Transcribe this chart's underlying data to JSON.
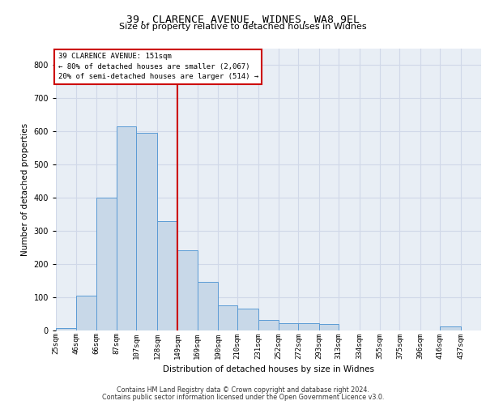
{
  "title1": "39, CLARENCE AVENUE, WIDNES, WA8 9EL",
  "title2": "Size of property relative to detached houses in Widnes",
  "xlabel": "Distribution of detached houses by size in Widnes",
  "ylabel": "Number of detached properties",
  "footer1": "Contains HM Land Registry data © Crown copyright and database right 2024.",
  "footer2": "Contains public sector information licensed under the Open Government Licence v3.0.",
  "annotation_line1": "39 CLARENCE AVENUE: 151sqm",
  "annotation_line2": "← 80% of detached houses are smaller (2,067)",
  "annotation_line3": "20% of semi-detached houses are larger (514) →",
  "bar_labels": [
    "25sqm",
    "46sqm",
    "66sqm",
    "87sqm",
    "107sqm",
    "128sqm",
    "149sqm",
    "169sqm",
    "190sqm",
    "210sqm",
    "231sqm",
    "252sqm",
    "272sqm",
    "293sqm",
    "313sqm",
    "334sqm",
    "355sqm",
    "375sqm",
    "396sqm",
    "416sqm",
    "437sqm"
  ],
  "bar_values": [
    5,
    105,
    400,
    615,
    595,
    330,
    240,
    145,
    75,
    65,
    30,
    20,
    20,
    18,
    0,
    0,
    0,
    0,
    0,
    10,
    0
  ],
  "bin_edges": [
    25,
    46,
    66,
    87,
    107,
    128,
    149,
    169,
    190,
    210,
    231,
    252,
    272,
    293,
    313,
    334,
    355,
    375,
    396,
    416,
    437,
    458
  ],
  "bar_color": "#c8d8e8",
  "bar_edge_color": "#5b9bd5",
  "property_line_x": 149,
  "annotation_box_color": "#ffffff",
  "annotation_box_edge_color": "#cc0000",
  "grid_color": "#d0d8e8",
  "bg_color": "#e8eef5",
  "ylim": [
    0,
    850
  ],
  "xlim": [
    25,
    458
  ],
  "title1_fontsize": 9.5,
  "title2_fontsize": 8.0,
  "ylabel_fontsize": 7.5,
  "xlabel_fontsize": 7.5,
  "footer_fontsize": 5.8,
  "tick_fontsize": 6.5,
  "annot_fontsize": 6.5
}
